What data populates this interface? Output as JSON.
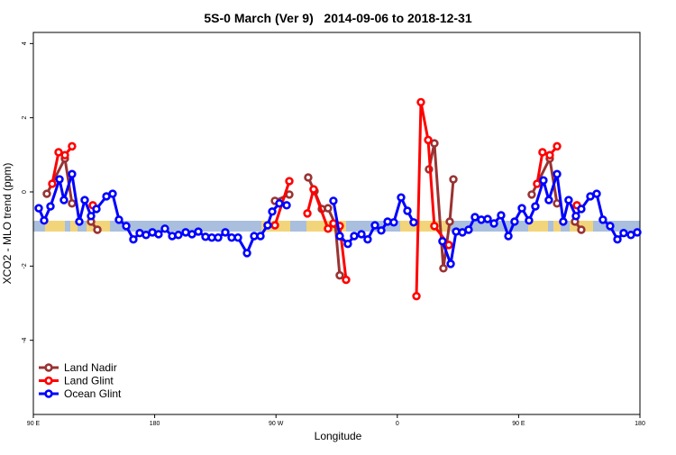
{
  "chart_data": {
    "type": "line",
    "title": "5S-0 March (Ver 9)   2014-09-06 to 2018-12-31",
    "x_label": "Longitude",
    "y_label": "XCO2 - MLO trend (ppm)",
    "xlim": [
      90,
      540
    ],
    "xticks": [
      {
        "value": 90,
        "label": "90 E"
      },
      180,
      {
        "value": 270,
        "label": "90 W"
      },
      {
        "value": 360,
        "label": "0"
      },
      {
        "value": 450,
        "label": "90 E"
      },
      {
        "value": 540,
        "label": "180"
      }
    ],
    "ylim": [
      -6,
      4.3
    ],
    "yticks": [
      -4,
      -2,
      0,
      2,
      4
    ],
    "legend": "bottom-left",
    "series": [
      {
        "name": "Land Nadir",
        "color": "#993333",
        "x": [
          100.0,
          113.4,
          118.7,
          null,
          132.8,
          137.5,
          null,
          269.2,
          279.9,
          null,
          293.9,
          298.6,
          304.0,
          308.6,
          314.0,
          317.3,
          null,
          383.5,
          387.5,
          394.2,
          398.9,
          401.6,
          null,
          459.7,
          473.1,
          478.5,
          null,
          491.8,
          496.5
        ],
        "values": [
          -0.05,
          0.9,
          -0.31,
          null,
          -0.8,
          -1.02,
          null,
          -0.24,
          -0.07,
          null,
          0.39,
          0.02,
          -0.46,
          -0.44,
          -0.87,
          -2.25,
          null,
          0.61,
          1.31,
          -2.06,
          -0.8,
          0.34,
          null,
          -0.07,
          0.9,
          -0.31,
          null,
          -0.8,
          -1.02
        ]
      },
      {
        "name": "Land Glint",
        "color": "#ff0000",
        "x": [
          104.0,
          108.7,
          113.4,
          118.7,
          null,
          134.1,
          null,
          269.2,
          279.9,
          null,
          293.3,
          297.9,
          308.6,
          312.6,
          317.3,
          322.0,
          null,
          374.2,
          377.5,
          382.9,
          387.5,
          398.2,
          null,
          463.7,
          467.7,
          473.1,
          478.5,
          null,
          493.2
        ],
        "values": [
          0.22,
          1.07,
          0.99,
          1.23,
          null,
          -0.36,
          null,
          -0.9,
          0.29,
          null,
          -0.58,
          0.07,
          -0.99,
          -0.85,
          -0.92,
          -2.37,
          null,
          -2.81,
          2.42,
          1.4,
          -0.92,
          -1.43,
          null,
          0.22,
          1.07,
          0.99,
          1.23,
          null,
          -0.36
        ]
      },
      {
        "name": "Ocean Glint",
        "color": "#0000ff",
        "x": [
          94.0,
          98.0,
          102.7,
          109.4,
          112.7,
          118.7,
          124.1,
          128.1,
          132.8,
          136.8,
          144.2,
          148.8,
          153.5,
          158.9,
          164.2,
          168.9,
          173.6,
          178.3,
          182.9,
          187.6,
          193.0,
          197.6,
          203.0,
          207.7,
          212.4,
          217.7,
          222.4,
          227.1,
          232.4,
          237.1,
          241.8,
          248.5,
          253.8,
          258.5,
          263.8,
          267.2,
          272.5,
          277.9,
          null,
          312.6,
          317.3,
          323.3,
          328.0,
          333.4,
          338.0,
          343.4,
          348.1,
          352.8,
          357.4,
          362.8,
          367.5,
          372.1,
          null,
          393.5,
          399.6,
          403.6,
          408.3,
          412.9,
          417.6,
          422.3,
          427.0,
          431.7,
          437.0,
          442.4,
          447.0,
          452.4,
          457.7,
          462.4,
          468.4,
          472.4,
          478.5,
          483.1,
          487.1,
          492.5,
          496.5,
          503.2,
          507.9,
          512.5,
          517.9,
          523.3,
          527.9,
          533.3,
          538.0
        ],
        "values": [
          -0.44,
          -0.77,
          -0.39,
          0.34,
          -0.22,
          0.48,
          -0.8,
          -0.22,
          -0.65,
          -0.46,
          -0.12,
          -0.05,
          -0.75,
          -0.92,
          -1.28,
          -1.11,
          -1.16,
          -1.09,
          -1.14,
          -0.99,
          -1.19,
          -1.16,
          -1.09,
          -1.14,
          -1.07,
          -1.21,
          -1.23,
          -1.23,
          -1.09,
          -1.23,
          -1.23,
          -1.65,
          -1.19,
          -1.19,
          -0.9,
          -0.53,
          -0.31,
          -0.36,
          null,
          -0.24,
          -1.19,
          -1.4,
          -1.19,
          -1.14,
          -1.28,
          -0.9,
          -1.04,
          -0.8,
          -0.82,
          -0.15,
          -0.51,
          -0.82,
          null,
          -1.33,
          -1.94,
          -1.07,
          -1.09,
          -1.02,
          -0.68,
          -0.75,
          -0.73,
          -0.85,
          -0.63,
          -1.19,
          -0.8,
          -0.44,
          -0.77,
          -0.39,
          0.31,
          -0.22,
          0.48,
          -0.8,
          -0.22,
          -0.65,
          -0.46,
          -0.12,
          -0.05,
          -0.75,
          -0.92,
          -1.28,
          -1.11,
          -1.16,
          -1.09
        ]
      }
    ]
  }
}
